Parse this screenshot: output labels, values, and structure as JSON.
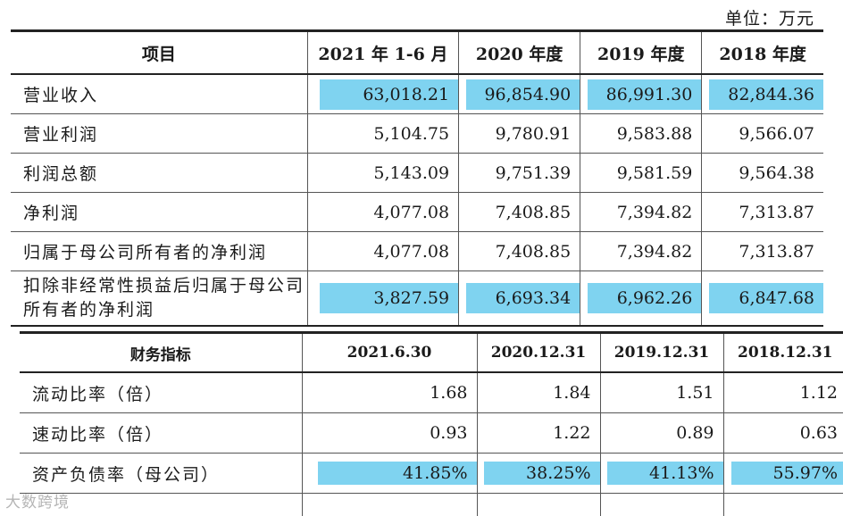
{
  "unit_label": "单位：万元",
  "table1": {
    "headers": [
      "项目",
      "2021 年 1-6 月",
      "2020 年度",
      "2019 年度",
      "2018 年度"
    ],
    "rows": [
      {
        "label": "营业收入",
        "values": [
          "63,018.21",
          "96,854.90",
          "86,991.30",
          "82,844.36"
        ],
        "highlight": true
      },
      {
        "label": "营业利润",
        "values": [
          "5,104.75",
          "9,780.91",
          "9,583.88",
          "9,566.07"
        ],
        "highlight": false
      },
      {
        "label": "利润总额",
        "values": [
          "5,143.09",
          "9,751.39",
          "9,581.59",
          "9,564.38"
        ],
        "highlight": false
      },
      {
        "label": "净利润",
        "values": [
          "4,077.08",
          "7,408.85",
          "7,394.82",
          "7,313.87"
        ],
        "highlight": false
      },
      {
        "label": "归属于母公司所有者的净利润",
        "values": [
          "4,077.08",
          "7,408.85",
          "7,394.82",
          "7,313.87"
        ],
        "highlight": false
      },
      {
        "label": "扣除非经常性损益后归属于母公司所有者的净利润",
        "values": [
          "3,827.59",
          "6,693.34",
          "6,962.26",
          "6,847.68"
        ],
        "highlight": true
      }
    ]
  },
  "table2": {
    "headers": [
      "财务指标",
      "2021.6.30",
      "2020.12.31",
      "2019.12.31",
      "2018.12.31"
    ],
    "rows": [
      {
        "label": "流动比率（倍）",
        "values": [
          "1.68",
          "1.84",
          "1.51",
          "1.12"
        ],
        "highlight": false
      },
      {
        "label": "速动比率（倍）",
        "values": [
          "0.93",
          "1.22",
          "0.89",
          "0.63"
        ],
        "highlight": false
      },
      {
        "label": "资产负债率（母公司）",
        "values": [
          "41.85%",
          "38.25%",
          "41.13%",
          "55.97%"
        ],
        "highlight": true
      }
    ]
  },
  "watermark": "大数跨境",
  "highlight_color": "#7fd3f0"
}
